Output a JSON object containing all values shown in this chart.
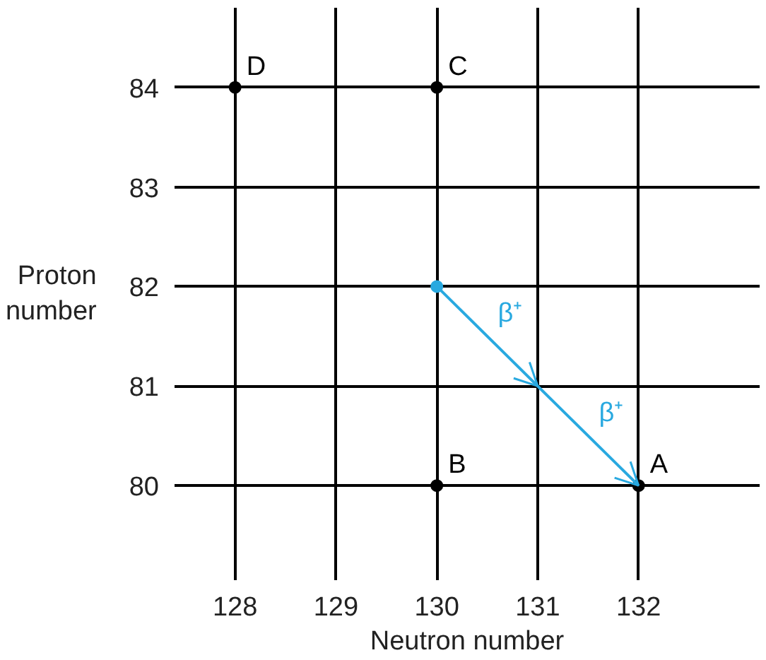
{
  "chart_data": {
    "type": "scatter",
    "xlabel": "Neutron number",
    "ylabel": "Proton number",
    "xlim": [
      127.4,
      133.2
    ],
    "ylim": [
      79.05,
      84.8
    ],
    "xticks": [
      128,
      129,
      130,
      131,
      132
    ],
    "yticks": [
      80,
      81,
      82,
      83,
      84
    ],
    "grid": true,
    "marker": "circle",
    "series": [
      {
        "color": "#000000",
        "x": [
          128,
          130,
          130,
          132
        ],
        "values": [
          84,
          84,
          80,
          80
        ],
        "value_labels": [
          "D",
          "C",
          "B",
          "A"
        ]
      },
      {
        "type": "line",
        "color": "#29a9e0",
        "x": [
          130,
          131,
          132
        ],
        "values": [
          82,
          81,
          80
        ],
        "marker": "none"
      },
      {
        "color": "#29a9e0",
        "x": [
          130
        ],
        "values": [
          82
        ]
      }
    ],
    "annotations": [
      {
        "text": "β⁺",
        "x": 130.5,
        "y": 81.5
      },
      {
        "text": "β⁺",
        "x": 131.5,
        "y": 80.5
      }
    ]
  }
}
